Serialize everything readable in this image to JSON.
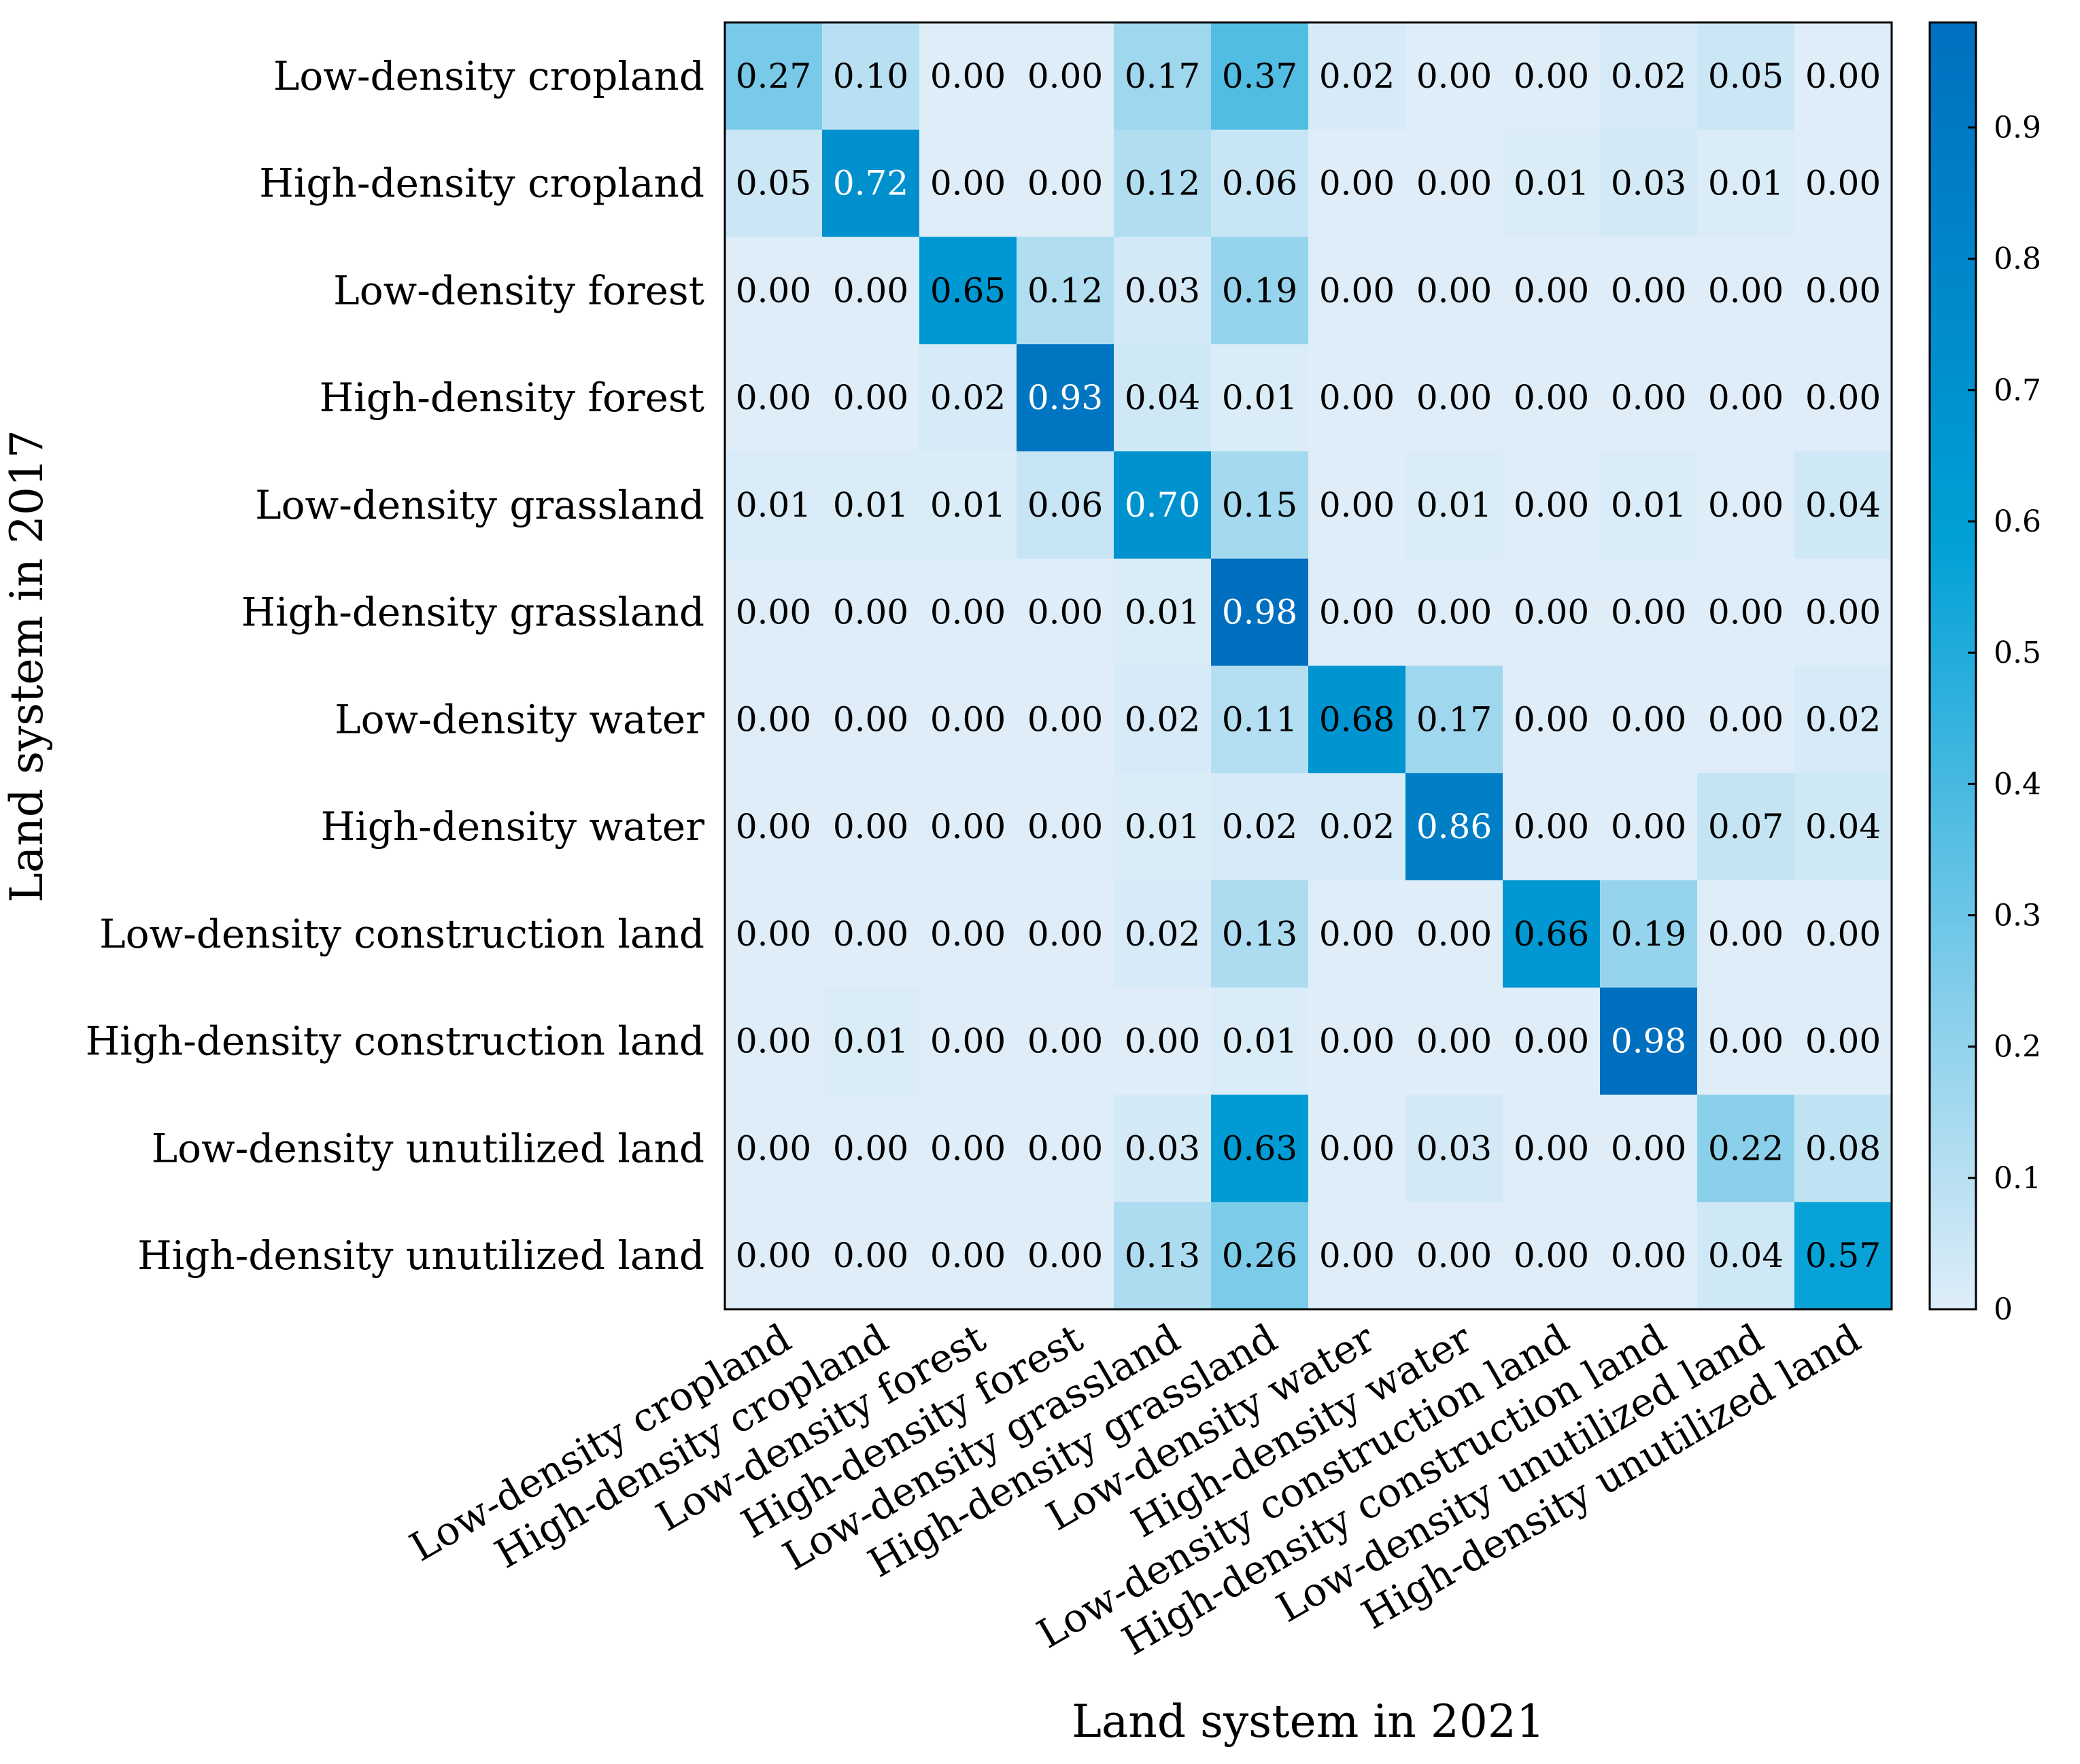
{
  "chart_data": {
    "type": "heatmap",
    "title": "",
    "xlabel": "Land system in 2021",
    "ylabel": "Land system in 2017",
    "row_labels": [
      "Low-density cropland",
      "High-density cropland",
      "Low-density forest",
      "High-density forest",
      "Low-density grassland",
      "High-density grassland",
      "Low-density water",
      "High-density water",
      "Low-density construction land",
      "High-density construction land",
      "Low-density unutilized land",
      "High-density unutilized land"
    ],
    "col_labels": [
      "Low-density cropland",
      "High-density cropland",
      "Low-density forest",
      "High-density forest",
      "Low-density grassland",
      "High-density grassland",
      "Low-density water",
      "High-density water",
      "Low-density construction land",
      "High-density construction land",
      "Low-density unutilized land",
      "High-density unutilized land"
    ],
    "values": [
      [
        0.27,
        0.1,
        0.0,
        0.0,
        0.17,
        0.37,
        0.02,
        0.0,
        0.0,
        0.02,
        0.05,
        0.0
      ],
      [
        0.05,
        0.72,
        0.0,
        0.0,
        0.12,
        0.06,
        0.0,
        0.0,
        0.01,
        0.03,
        0.01,
        0.0
      ],
      [
        0.0,
        0.0,
        0.65,
        0.12,
        0.03,
        0.19,
        0.0,
        0.0,
        0.0,
        0.0,
        0.0,
        0.0
      ],
      [
        0.0,
        0.0,
        0.02,
        0.93,
        0.04,
        0.01,
        0.0,
        0.0,
        0.0,
        0.0,
        0.0,
        0.0
      ],
      [
        0.01,
        0.01,
        0.01,
        0.06,
        0.7,
        0.15,
        0.0,
        0.01,
        0.0,
        0.01,
        0.0,
        0.04
      ],
      [
        0.0,
        0.0,
        0.0,
        0.0,
        0.01,
        0.98,
        0.0,
        0.0,
        0.0,
        0.0,
        0.0,
        0.0
      ],
      [
        0.0,
        0.0,
        0.0,
        0.0,
        0.02,
        0.11,
        0.68,
        0.17,
        0.0,
        0.0,
        0.0,
        0.02
      ],
      [
        0.0,
        0.0,
        0.0,
        0.0,
        0.01,
        0.02,
        0.02,
        0.86,
        0.0,
        0.0,
        0.07,
        0.04
      ],
      [
        0.0,
        0.0,
        0.0,
        0.0,
        0.02,
        0.13,
        0.0,
        0.0,
        0.66,
        0.19,
        0.0,
        0.0
      ],
      [
        0.0,
        0.01,
        0.0,
        0.0,
        0.0,
        0.01,
        0.0,
        0.0,
        0.0,
        0.98,
        0.0,
        0.0
      ],
      [
        0.0,
        0.0,
        0.0,
        0.0,
        0.03,
        0.63,
        0.0,
        0.03,
        0.0,
        0.0,
        0.22,
        0.08
      ],
      [
        0.0,
        0.0,
        0.0,
        0.0,
        0.13,
        0.26,
        0.0,
        0.0,
        0.0,
        0.0,
        0.04,
        0.57
      ]
    ],
    "colorbar": {
      "range": [
        0,
        0.98
      ],
      "ticks": [
        0,
        0.1,
        0.2,
        0.3,
        0.4,
        0.5,
        0.6,
        0.7,
        0.8,
        0.9
      ],
      "tick_labels": [
        "0",
        "0.1",
        "0.2",
        "0.3",
        "0.4",
        "0.5",
        "0.6",
        "0.7",
        "0.8",
        "0.9"
      ],
      "colormap": "Blues-like",
      "color_low": "#deedf8",
      "color_mid": "#00a0d6",
      "color_high": "#006fbf"
    },
    "cell_text_dark": "#000000",
    "cell_text_light": "#ffffff"
  }
}
